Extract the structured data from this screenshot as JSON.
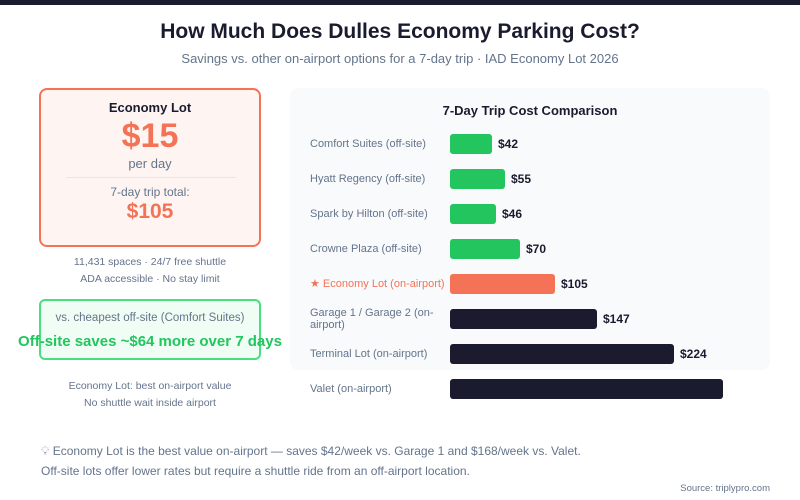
{
  "title": "How Much Does Dulles Economy Parking Cost?",
  "subtitle": "Savings vs. other on-airport options for a 7-day trip · IAD Economy Lot 2026",
  "card": {
    "label": "Economy Lot",
    "price": "$15",
    "per": "per day",
    "trip_label": "7-day trip total:",
    "trip_value": "$105"
  },
  "facts": [
    "11,431 spaces · 24/7 free shuttle",
    "ADA accessible · No stay limit"
  ],
  "compare": {
    "label": "vs. cheapest off-site (Comfort Suites)",
    "savings": "Off-site saves ~$64 more over 7 days"
  },
  "notes_left": [
    "Economy Lot: best on-airport value",
    "No shuttle wait inside airport"
  ],
  "footer": {
    "icon": "lightbulb-icon",
    "line1": "Economy Lot is the best value on-airport — saves $42/week vs. Garage 1 and $168/week vs. Valet.",
    "line2": "Off-site lots offer lower rates but require a shuttle ride from an off-airport location.",
    "source": "Source: triplypro.com"
  },
  "colors": {
    "offsite": "#22c55e",
    "highlight": "#f47356",
    "onairport": "#1a1b2e"
  },
  "chart_data": {
    "type": "bar",
    "orientation": "horizontal",
    "title": "7-Day Trip Cost Comparison",
    "categories": [
      "Comfort Suites (off-site)",
      "Hyatt Regency (off-site)",
      "Spark by Hilton (off-site)",
      "Crowne Plaza (off-site)",
      "★ Economy Lot (on-airport)",
      "Garage 1 / Garage 2 (on-airport)",
      "Terminal Lot (on-airport)",
      "Valet (on-airport)"
    ],
    "values": [
      42,
      55,
      46,
      70,
      105,
      147,
      224,
      273
    ],
    "value_labels": [
      "$42",
      "$55",
      "$46",
      "$70",
      "$105",
      "$147",
      "$224",
      ""
    ],
    "groups": [
      "offsite",
      "offsite",
      "offsite",
      "offsite",
      "highlight",
      "onairport",
      "onairport",
      "onairport"
    ],
    "grid": false
  }
}
